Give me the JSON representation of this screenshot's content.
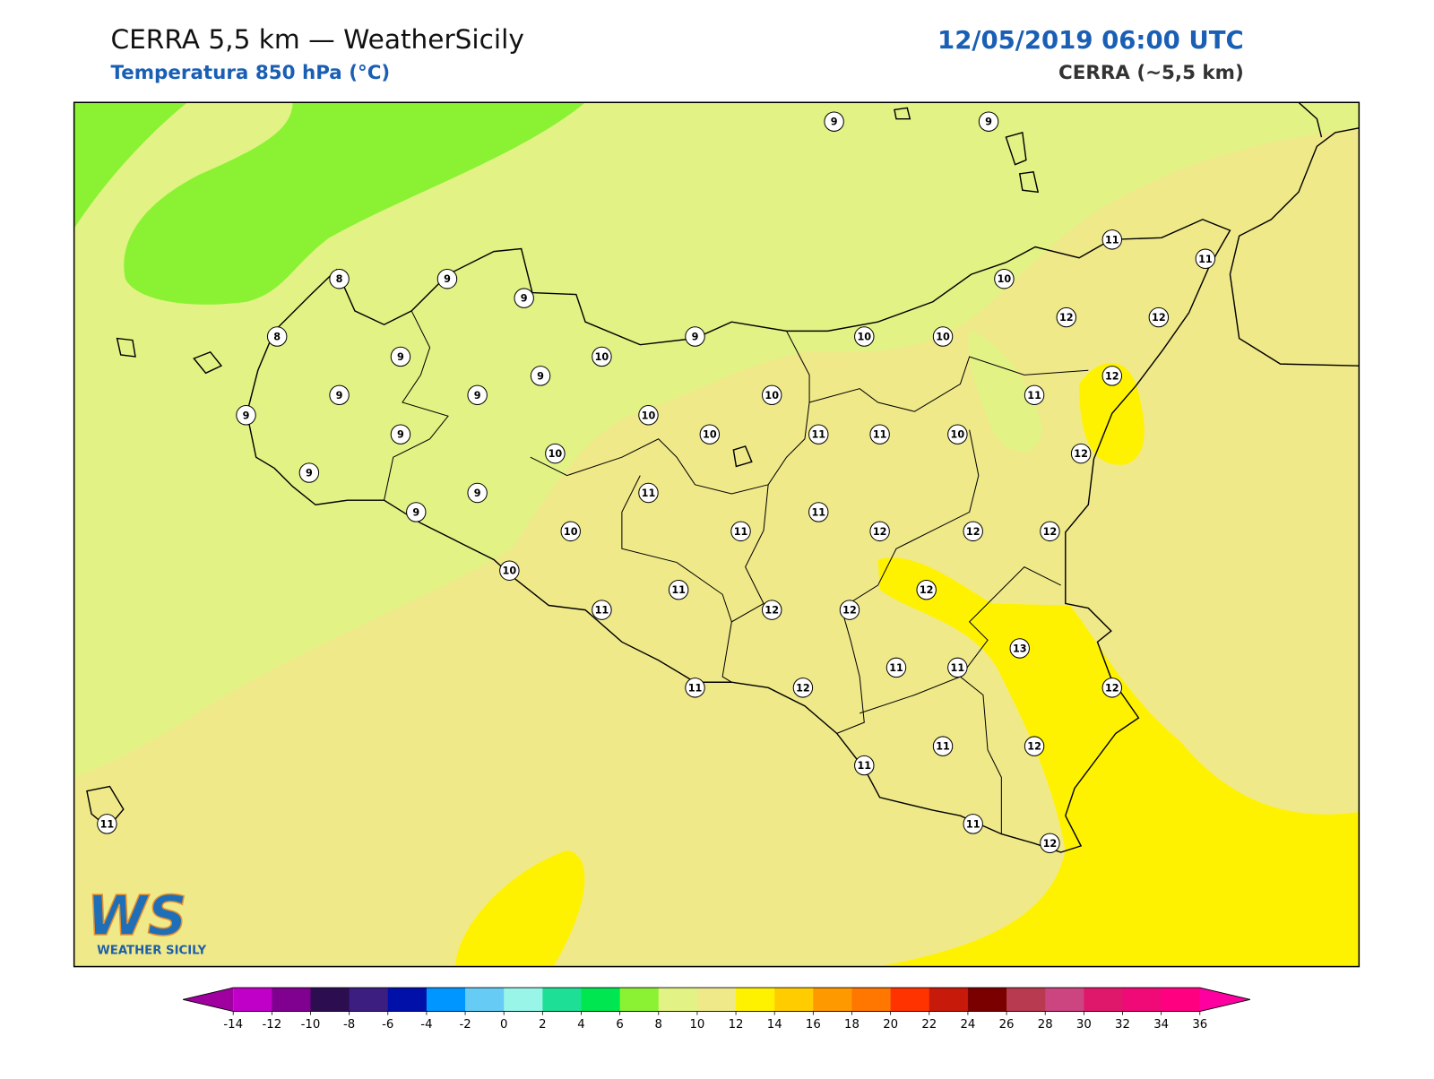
{
  "header": {
    "title": "CERRA 5,5 km — WeatherSicily",
    "subtitle": "Temperatura 850 hPa (°C)",
    "datetime": "12/05/2019 06:00 UTC",
    "model": "CERRA (~5,5 km)"
  },
  "map": {
    "stations": [
      9,
      9,
      11,
      11,
      8,
      9,
      9,
      10,
      12,
      12,
      8,
      9,
      10,
      10,
      9,
      10,
      9,
      12,
      9,
      9,
      10,
      11,
      9,
      10,
      9,
      10,
      11,
      11,
      10,
      10,
      12,
      9,
      9,
      11,
      9,
      11,
      10,
      11,
      12,
      12,
      12,
      10,
      12,
      11,
      11,
      12,
      12,
      13,
      11,
      11,
      11,
      12,
      12,
      11,
      12,
      11,
      11,
      11,
      12
    ]
  },
  "colorbar": {
    "ticks": [
      -14,
      -12,
      -10,
      -8,
      -6,
      -4,
      -2,
      0,
      2,
      4,
      6,
      8,
      10,
      12,
      14,
      16,
      18,
      20,
      22,
      24,
      26,
      28,
      30,
      32,
      34,
      36
    ],
    "colors": [
      "#c000c8",
      "#800090",
      "#2c0d50",
      "#3c1e80",
      "#0010a8",
      "#0096ff",
      "#66ccf5",
      "#99f5e8",
      "#1de096",
      "#00e650",
      "#8af233",
      "#e2f285",
      "#efe98a",
      "#fff200",
      "#ffcc00",
      "#ff9900",
      "#ff7700",
      "#ff3300",
      "#c81a0a",
      "#7a0000",
      "#b83a50",
      "#cc4480",
      "#e0186c",
      "#f00a78",
      "#ff0080"
    ],
    "under_color": "#a000a0",
    "over_color": "#ff00a0"
  },
  "logo": {
    "mark": "WS",
    "name": "WEATHER SICILY"
  }
}
